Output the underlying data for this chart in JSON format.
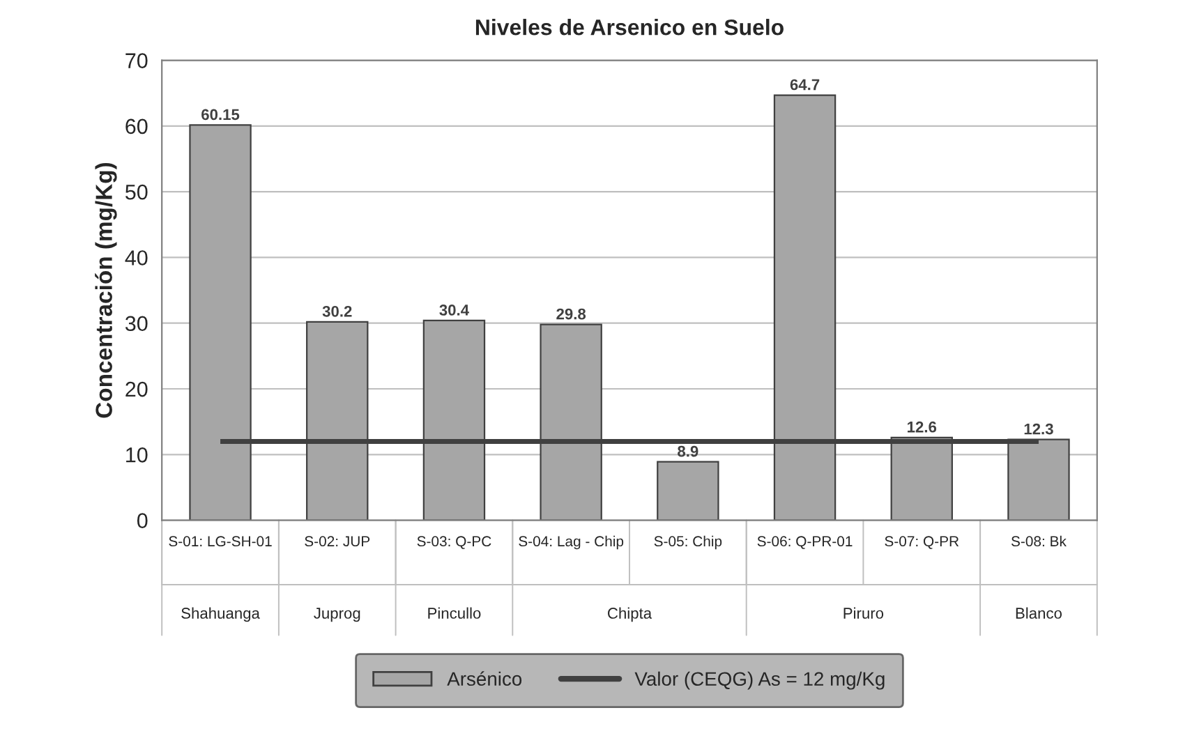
{
  "chart_data": {
    "type": "bar",
    "title": "Niveles de Arsenico en Suelo",
    "ylabel": "Concentración (mg/Kg)",
    "categories": [
      "S-01: LG-SH-01\nShahuanga",
      "S-02: JUP\nJuprog",
      "S-03: Q-PC\nPincullo",
      "S-04: Lag - Chip\nChipta",
      "S-05: Chip",
      "S-06: Q-PR-01\nPiruro",
      "S-07: Q-PR",
      "S-08: Bk\nBlanco"
    ],
    "series": [
      {
        "name": "Arsénico",
        "color": "#a6a6a6",
        "values": [
          60.15,
          30.2,
          30.4,
          29.8,
          8.9,
          64.7,
          12.6,
          12.3
        ]
      }
    ],
    "ref_lines": [
      {
        "axis": "y",
        "value": 12,
        "label": "Valor (CEQG) As = 12 mg/Kg",
        "color": "#404040",
        "line_style": "solid"
      }
    ],
    "ylim": [
      0,
      70
    ],
    "yticks": [
      0,
      10,
      20,
      30,
      40,
      50,
      60,
      70
    ],
    "grid": "y",
    "data_labels": true,
    "legend": "bottom"
  }
}
